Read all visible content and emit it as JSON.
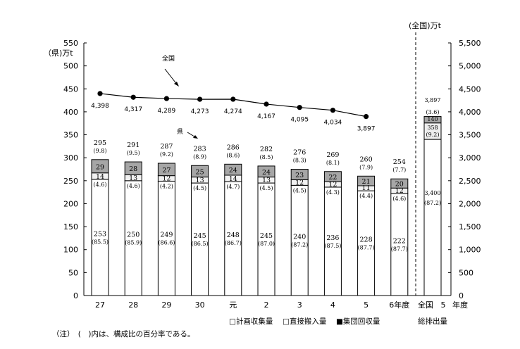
{
  "chart_data": {
    "type": "bar",
    "title": "",
    "left_axis_label": "（県)万t",
    "right_axis_label": "(全国)万t",
    "left_ylim": [
      0,
      550
    ],
    "right_ylim": [
      0,
      5500
    ],
    "left_ticks": [
      "0",
      "50",
      "100",
      "150",
      "200",
      "250",
      "300",
      "350",
      "400",
      "450",
      "500",
      "550"
    ],
    "right_ticks": [
      "0",
      "500",
      "1,000",
      "1,500",
      "2,000",
      "2,500",
      "3,000",
      "3,500",
      "4,000",
      "4,500",
      "5,000",
      "5,500"
    ],
    "categories": [
      "27",
      "28",
      "29",
      "30",
      "元",
      "2",
      "3",
      "4",
      "5",
      "6年度"
    ],
    "national_category": "全国　5　年度",
    "national_category_parts": [
      "全国",
      "5",
      "年度"
    ],
    "national_sublabel": "総排出量",
    "series": [
      {
        "name": "計画収集量",
        "color": "#ffffff",
        "values": [
          253,
          250,
          249,
          245,
          248,
          245,
          240,
          236,
          228,
          222
        ],
        "percent": [
          "(85.5)",
          "(85.9)",
          "(86.6)",
          "(86.5)",
          "(86.7)",
          "(87.0)",
          "(87.2)",
          "(87.5)",
          "(87.7)",
          "(87.7)"
        ]
      },
      {
        "name": "直接搬入量",
        "color": "#f2f2f2",
        "values": [
          14,
          13,
          12,
          13,
          14,
          13,
          12,
          12,
          11,
          12
        ],
        "percent": [
          "(4.6)",
          "(4.6)",
          "(4.2)",
          "(4.5)",
          "(4.7)",
          "(4.5)",
          "(4.5)",
          "(4.3)",
          "(4.4)",
          "(4.6)"
        ]
      },
      {
        "name": "集団回収量",
        "color": "#a6a6a6",
        "values": [
          29,
          28,
          27,
          25,
          24,
          24,
          23,
          22,
          21,
          20
        ],
        "percent": [
          "(9.8)",
          "(9.5)",
          "(9.2)",
          "(8.9)",
          "(8.6)",
          "(8.5)",
          "(8.3)",
          "(8.1)",
          "(7.9)",
          "(7.7)"
        ]
      }
    ],
    "totals": [
      295,
      291,
      287,
      283,
      286,
      282,
      276,
      269,
      260,
      254
    ],
    "national_bar": {
      "planned": {
        "value": "3,400",
        "num": 3400,
        "percent": "(87.2)"
      },
      "direct": {
        "value": "358",
        "num": 358,
        "percent": "(9.2)"
      },
      "group": {
        "value": "140",
        "num": 140,
        "percent": "(3.6)"
      },
      "total": "3,897"
    },
    "national_line": {
      "name": "全国",
      "values": [
        4398,
        4317,
        4289,
        4273,
        4274,
        4167,
        4095,
        4034,
        3897
      ],
      "labels": [
        "4,398",
        "4,317",
        "4,289",
        "4,273",
        "4,274",
        "4,167",
        "4,095",
        "4,034",
        "3,897"
      ]
    },
    "pref_label": "県",
    "legend": [
      "□計画収集量",
      "□直接搬入量",
      "■集団回収量"
    ],
    "note": "（注）　(　)内は、構成比の百分率である。"
  }
}
